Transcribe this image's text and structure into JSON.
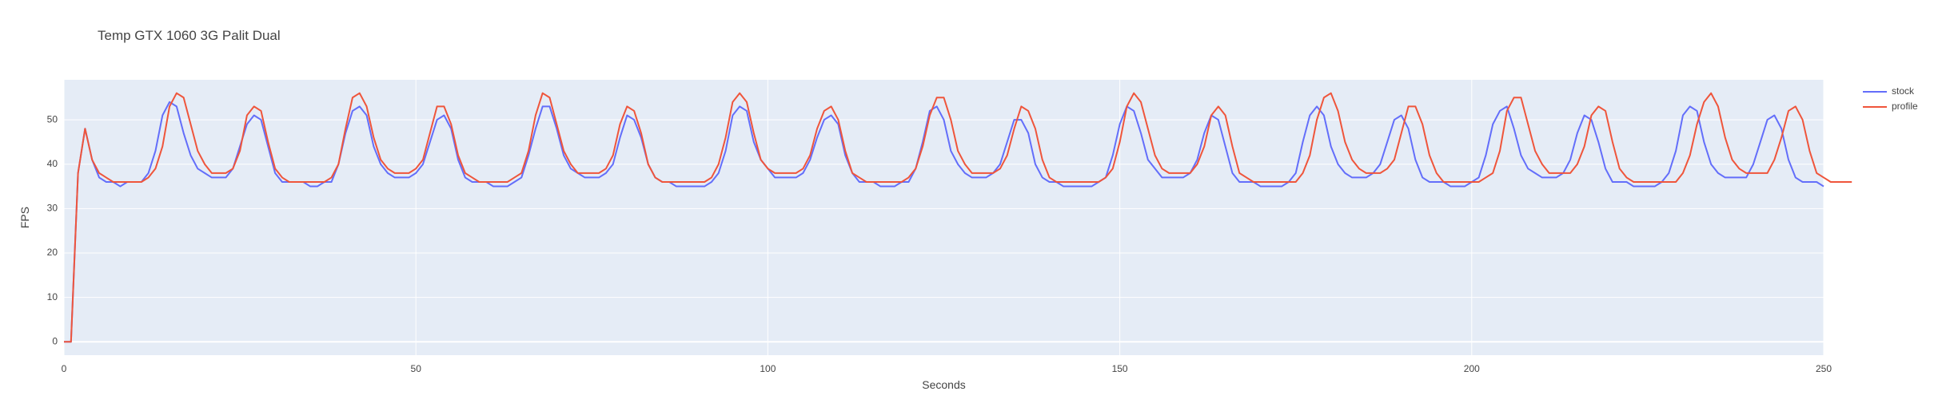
{
  "chart_data": {
    "type": "line",
    "title": "Temp GTX 1060 3G Palit Dual",
    "xlabel": "Seconds",
    "ylabel": "FPS",
    "xlim": [
      0,
      250
    ],
    "ylim": [
      -3,
      59
    ],
    "x_ticks": [
      0,
      50,
      100,
      150,
      200,
      250
    ],
    "y_ticks": [
      0,
      10,
      20,
      30,
      40,
      50
    ],
    "grid": true,
    "legend_position": "top-right",
    "series": [
      {
        "name": "stock",
        "color": "#636efa",
        "values": [
          0,
          0,
          38,
          48,
          41,
          37,
          36,
          36,
          35,
          36,
          36,
          36,
          38,
          43,
          51,
          54,
          53,
          47,
          42,
          39,
          38,
          37,
          37,
          37,
          39,
          44,
          49,
          51,
          50,
          44,
          38,
          36,
          36,
          36,
          36,
          35,
          35,
          36,
          36,
          40,
          47,
          52,
          53,
          51,
          44,
          40,
          38,
          37,
          37,
          37,
          38,
          40,
          45,
          50,
          51,
          48,
          41,
          37,
          36,
          36,
          36,
          35,
          35,
          35,
          36,
          37,
          42,
          48,
          53,
          53,
          48,
          42,
          39,
          38,
          37,
          37,
          37,
          38,
          40,
          46,
          51,
          50,
          46,
          40,
          37,
          36,
          36,
          35,
          35,
          35,
          35,
          35,
          36,
          38,
          43,
          51,
          53,
          52,
          45,
          41,
          39,
          37,
          37,
          37,
          37,
          38,
          41,
          46,
          50,
          51,
          49,
          42,
          38,
          36,
          36,
          36,
          35,
          35,
          35,
          36,
          36,
          39,
          45,
          52,
          53,
          50,
          43,
          40,
          38,
          37,
          37,
          37,
          38,
          40,
          45,
          50,
          50,
          47,
          40,
          37,
          36,
          36,
          35,
          35,
          35,
          35,
          35,
          36,
          37,
          42,
          49,
          53,
          52,
          47,
          41,
          39,
          37,
          37,
          37,
          37,
          38,
          41,
          47,
          51,
          50,
          44,
          38,
          36,
          36,
          36,
          35,
          35,
          35,
          35,
          36,
          38,
          45,
          51,
          53,
          51,
          44,
          40,
          38,
          37,
          37,
          37,
          38,
          40,
          45,
          50,
          51,
          48,
          41,
          37,
          36,
          36,
          36,
          35,
          35,
          35,
          36,
          37,
          42,
          49,
          52,
          53,
          48,
          42,
          39,
          38,
          37,
          37,
          37,
          38,
          41,
          47,
          51,
          50,
          45,
          39,
          36,
          36,
          36,
          35,
          35,
          35,
          35,
          36,
          38,
          43,
          51,
          53,
          52,
          45,
          40,
          38,
          37,
          37,
          37,
          37,
          40,
          45,
          50,
          51,
          48,
          41,
          37,
          36,
          36,
          36,
          35
        ]
      },
      {
        "name": "profile",
        "color": "#ef553b",
        "values": [
          0,
          0,
          38,
          48,
          41,
          38,
          37,
          36,
          36,
          36,
          36,
          36,
          37,
          39,
          44,
          53,
          56,
          55,
          49,
          43,
          40,
          38,
          38,
          38,
          39,
          43,
          51,
          53,
          52,
          45,
          39,
          37,
          36,
          36,
          36,
          36,
          36,
          36,
          37,
          40,
          48,
          55,
          56,
          53,
          46,
          41,
          39,
          38,
          38,
          38,
          39,
          41,
          47,
          53,
          53,
          49,
          42,
          38,
          37,
          36,
          36,
          36,
          36,
          36,
          37,
          38,
          43,
          51,
          56,
          55,
          49,
          43,
          40,
          38,
          38,
          38,
          38,
          39,
          42,
          49,
          53,
          52,
          47,
          40,
          37,
          36,
          36,
          36,
          36,
          36,
          36,
          36,
          37,
          40,
          46,
          54,
          56,
          54,
          47,
          41,
          39,
          38,
          38,
          38,
          38,
          39,
          42,
          48,
          52,
          53,
          50,
          43,
          38,
          37,
          36,
          36,
          36,
          36,
          36,
          36,
          37,
          39,
          44,
          51,
          55,
          55,
          50,
          43,
          40,
          38,
          38,
          38,
          38,
          39,
          42,
          48,
          53,
          52,
          48,
          41,
          37,
          36,
          36,
          36,
          36,
          36,
          36,
          36,
          37,
          39,
          45,
          53,
          56,
          54,
          48,
          42,
          39,
          38,
          38,
          38,
          38,
          40,
          44,
          51,
          53,
          51,
          44,
          38,
          37,
          36,
          36,
          36,
          36,
          36,
          36,
          36,
          38,
          42,
          50,
          55,
          56,
          52,
          45,
          41,
          39,
          38,
          38,
          38,
          39,
          41,
          47,
          53,
          53,
          49,
          42,
          38,
          36,
          36,
          36,
          36,
          36,
          36,
          37,
          38,
          43,
          52,
          55,
          55,
          49,
          43,
          40,
          38,
          38,
          38,
          38,
          40,
          44,
          51,
          53,
          52,
          45,
          39,
          37,
          36,
          36,
          36,
          36,
          36,
          36,
          36,
          38,
          42,
          49,
          54,
          56,
          53,
          46,
          41,
          39,
          38,
          38,
          38,
          38,
          41,
          46,
          52,
          53,
          50,
          43,
          38,
          37,
          36,
          36,
          36,
          36
        ]
      }
    ]
  }
}
